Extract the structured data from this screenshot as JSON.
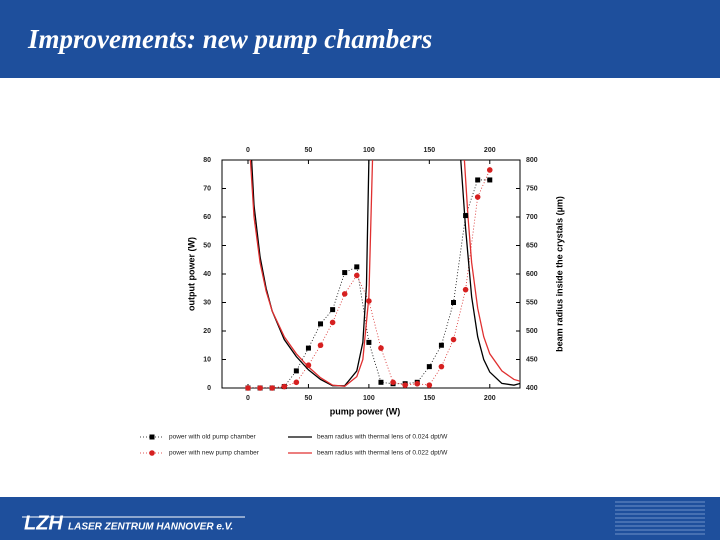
{
  "header": {
    "title": "Improvements: new pump chambers"
  },
  "footer": {
    "logo": "LZH",
    "name": "LASER ZENTRUM HANNOVER e.V."
  },
  "chart_data": {
    "type": "scatter",
    "xlabel": "pump power (W)",
    "ylabel": "output power (W)",
    "y2label": "beam radius inside the crystals (µm)",
    "xlim": [
      -21.5,
      225
    ],
    "xticks": [
      0,
      50,
      100,
      150,
      200
    ],
    "ylim": [
      0,
      80
    ],
    "yticks": [
      0,
      10,
      20,
      30,
      40,
      50,
      60,
      70,
      80
    ],
    "y2lim": [
      400,
      800
    ],
    "y2ticks": [
      400,
      450,
      500,
      550,
      600,
      650,
      700,
      750,
      800
    ],
    "series": [
      {
        "name": "power with old pump chamber",
        "color": "#000000",
        "marker": "square",
        "x": [
          0,
          10,
          20,
          30,
          40,
          50,
          60,
          70,
          80,
          90,
          100,
          110,
          120,
          130,
          140,
          150,
          160,
          170,
          180,
          190,
          200
        ],
        "values": [
          0,
          0,
          0,
          0.5,
          6,
          14,
          22.5,
          27.5,
          40.5,
          42.5,
          16,
          2,
          1.5,
          1.5,
          2,
          7.5,
          15,
          30,
          60.5,
          73,
          73
        ]
      },
      {
        "name": "power with new pump chamber",
        "color": "#d62020",
        "marker": "circle",
        "x": [
          0,
          10,
          20,
          30,
          40,
          50,
          60,
          70,
          80,
          90,
          100,
          110,
          120,
          130,
          140,
          150,
          160,
          170,
          180,
          190,
          200
        ],
        "values": [
          0,
          0,
          0,
          0.5,
          2,
          8,
          15,
          23,
          33,
          39.5,
          30.5,
          14,
          2,
          1,
          1.5,
          1,
          7.5,
          17,
          34.5,
          67,
          76.5
        ]
      },
      {
        "name": "beam radius with thermal lens of 0.024 dpt/W",
        "color": "#000000",
        "marker": "line",
        "axis": "y2",
        "x": [
          3,
          5,
          10,
          15,
          20,
          30,
          40,
          50,
          60,
          70,
          80,
          90,
          95,
          98,
          100,
          null,
          176,
          180,
          185,
          190,
          195,
          200,
          210,
          220,
          225
        ],
        "values": [
          800,
          720,
          630,
          575,
          535,
          485,
          455,
          432,
          415,
          404,
          404,
          430,
          480,
          580,
          800,
          null,
          800,
          680,
          560,
          490,
          450,
          428,
          408,
          405,
          408
        ]
      },
      {
        "name": "beam radius with thermal lens of 0.022 dpt/W",
        "color": "#e03030",
        "marker": "line",
        "axis": "y2",
        "x": [
          2,
          5,
          10,
          15,
          20,
          30,
          40,
          50,
          60,
          70,
          80,
          90,
          95,
          100,
          103,
          null,
          179,
          182,
          185,
          190,
          195,
          200,
          210,
          220,
          225
        ],
        "values": [
          800,
          700,
          620,
          570,
          535,
          490,
          460,
          437,
          418,
          405,
          403,
          420,
          450,
          560,
          800,
          null,
          800,
          700,
          620,
          540,
          490,
          460,
          430,
          415,
          412
        ]
      }
    ]
  }
}
